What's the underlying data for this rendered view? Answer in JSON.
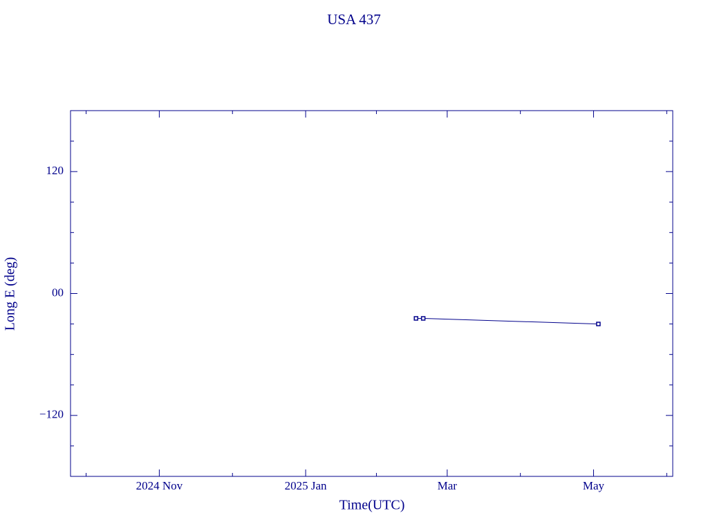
{
  "chart_data": {
    "type": "line",
    "title": "USA 437",
    "x_label": "Time(UTC)",
    "y_label": "Long E (deg)",
    "x": [
      "2025-02-16",
      "2025-02-19",
      "2025-05-03"
    ],
    "series": [
      {
        "color": "#00008b",
        "values": [
          -24.5,
          -24.5,
          -30
        ]
      }
    ],
    "xlim": [
      "2024-09-25",
      "2025-06-03"
    ],
    "xticks": [
      {
        "value": "2024-11-01",
        "label": "2024 Nov"
      },
      {
        "value": "2025-01-01",
        "label": "2025 Jan"
      },
      {
        "value": "2025-03-01",
        "label": "Mar"
      },
      {
        "value": "2025-05-01",
        "label": "May"
      }
    ],
    "ylim": [
      -180,
      180
    ],
    "yticks": [
      {
        "value": -120,
        "label": "−120"
      },
      {
        "value": 0,
        "label": "00"
      },
      120
    ]
  }
}
